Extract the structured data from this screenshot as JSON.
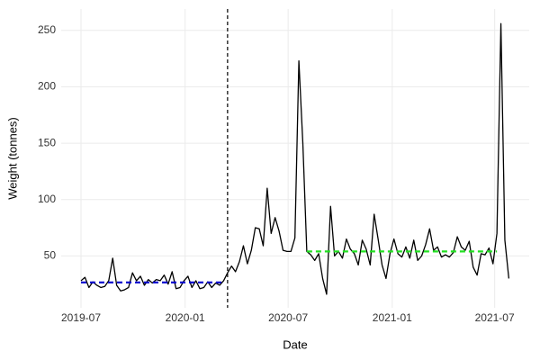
{
  "chart_data": {
    "type": "line",
    "xlabel": "Date",
    "ylabel": "Weight (tonnes)",
    "x": [
      "2019-07-01",
      "2019-07-08",
      "2019-07-15",
      "2019-07-22",
      "2019-07-29",
      "2019-08-05",
      "2019-08-12",
      "2019-08-19",
      "2019-08-26",
      "2019-09-02",
      "2019-09-09",
      "2019-09-16",
      "2019-09-23",
      "2019-09-30",
      "2019-10-07",
      "2019-10-14",
      "2019-10-21",
      "2019-10-28",
      "2019-11-04",
      "2019-11-11",
      "2019-11-18",
      "2019-11-25",
      "2019-12-02",
      "2019-12-09",
      "2019-12-16",
      "2019-12-23",
      "2019-12-30",
      "2020-01-06",
      "2020-01-13",
      "2020-01-20",
      "2020-01-27",
      "2020-02-03",
      "2020-02-10",
      "2020-02-17",
      "2020-02-24",
      "2020-03-02",
      "2020-03-09",
      "2020-03-16",
      "2020-03-23",
      "2020-03-30",
      "2020-04-06",
      "2020-04-13",
      "2020-04-20",
      "2020-04-27",
      "2020-05-04",
      "2020-05-11",
      "2020-05-18",
      "2020-05-25",
      "2020-06-01",
      "2020-06-08",
      "2020-06-15",
      "2020-06-22",
      "2020-06-29",
      "2020-07-06",
      "2020-07-13",
      "2020-07-20",
      "2020-07-27",
      "2020-08-03",
      "2020-08-10",
      "2020-08-17",
      "2020-08-24",
      "2020-08-31",
      "2020-09-07",
      "2020-09-14",
      "2020-09-21",
      "2020-09-28",
      "2020-10-05",
      "2020-10-12",
      "2020-10-19",
      "2020-10-26",
      "2020-11-02",
      "2020-11-09",
      "2020-11-16",
      "2020-11-23",
      "2020-11-30",
      "2020-12-07",
      "2020-12-14",
      "2020-12-21",
      "2020-12-28",
      "2021-01-04",
      "2021-01-11",
      "2021-01-18",
      "2021-01-25",
      "2021-02-01",
      "2021-02-08",
      "2021-02-15",
      "2021-02-22",
      "2021-03-01",
      "2021-03-08",
      "2021-03-15",
      "2021-03-22",
      "2021-03-29",
      "2021-04-05",
      "2021-04-12",
      "2021-04-19",
      "2021-04-26",
      "2021-05-03",
      "2021-05-10",
      "2021-05-17",
      "2021-05-24",
      "2021-05-31",
      "2021-06-07",
      "2021-06-14",
      "2021-06-21",
      "2021-06-28",
      "2021-07-05",
      "2021-07-12",
      "2021-07-19",
      "2021-07-26"
    ],
    "series": [
      {
        "name": "Weight",
        "color": "#000000",
        "values": [
          28,
          31,
          22,
          27,
          24,
          22,
          23,
          28,
          48,
          24,
          19,
          20,
          22,
          35,
          28,
          32,
          24,
          29,
          26,
          29,
          28,
          33,
          25,
          36,
          21,
          22,
          28,
          32,
          22,
          28,
          21,
          22,
          27,
          22,
          26,
          24,
          28,
          35,
          41,
          36,
          45,
          59,
          43,
          55,
          75,
          74,
          59,
          110,
          70,
          84,
          72,
          55,
          54,
          54,
          66,
          223,
          150,
          54,
          51,
          46,
          52,
          30,
          16,
          94,
          50,
          54,
          48,
          65,
          56,
          52,
          42,
          64,
          56,
          42,
          87,
          65,
          42,
          30,
          52,
          65,
          52,
          49,
          58,
          48,
          64,
          46,
          50,
          60,
          74,
          55,
          58,
          49,
          51,
          49,
          53,
          67,
          58,
          55,
          63,
          40,
          33,
          52,
          51,
          57,
          43,
          70,
          256,
          64,
          30
        ]
      }
    ],
    "vlines": [
      {
        "x": "2020-03-16",
        "color": "#000000"
      }
    ],
    "hsegments": [
      {
        "x": [
          "2019-07-01",
          "2020-03-09"
        ],
        "y": 26.5,
        "color": "#0000cd"
      },
      {
        "x": [
          "2020-08-03",
          "2021-07-05"
        ],
        "y": 54,
        "color": "#22e022"
      }
    ],
    "xlim": [
      "2019-05-27",
      "2021-08-31"
    ],
    "xticks": [
      {
        "value": "2019-07-01",
        "label": "2019-07"
      },
      {
        "value": "2020-01-01",
        "label": "2020-01"
      },
      {
        "value": "2020-07-01",
        "label": "2020-07"
      },
      {
        "value": "2021-01-01",
        "label": "2021-01"
      },
      {
        "value": "2021-07-01",
        "label": "2021-07"
      }
    ],
    "ylim": [
      4,
      269
    ],
    "yticks": [
      50,
      100,
      150,
      200,
      250
    ],
    "grid": true
  }
}
